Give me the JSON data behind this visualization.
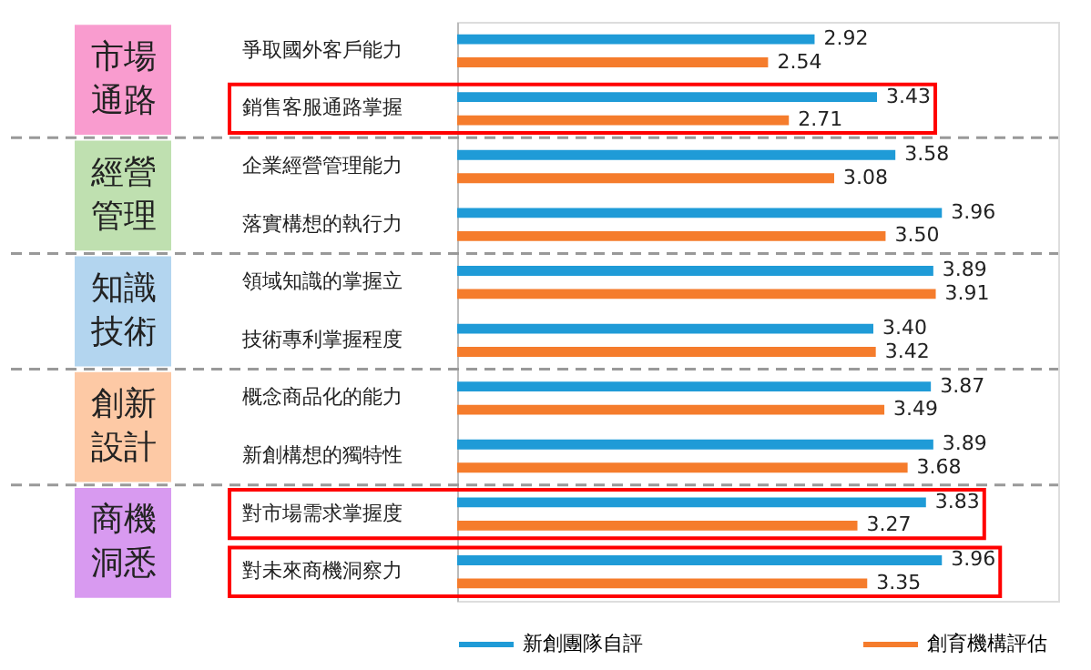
{
  "chart_data": {
    "type": "bar",
    "orientation": "horizontal",
    "legend": "bottom",
    "categories": [
      "爭取國外客戶能力",
      "銷售客服通路掌握",
      "企業經營管理能力",
      "落實構想的執行力",
      "領域知識的掌握立",
      "技術專利掌握程度",
      "概念商品化的能力",
      "新創構想的獨特性",
      "對市場需求掌握度",
      "對未來商機洞察力"
    ],
    "series": [
      {
        "name": "新創團隊自評",
        "color": "#1f9bd7",
        "values": [
          2.92,
          3.43,
          3.58,
          3.96,
          3.89,
          3.4,
          3.87,
          3.89,
          3.83,
          3.96
        ],
        "value_labels": [
          "2.92",
          "3.43",
          "3.58",
          "3.96",
          "3.89",
          "3.40",
          "3.87",
          "3.89",
          "3.83",
          "3.96"
        ]
      },
      {
        "name": "創育機構評估",
        "color": "#f57c2c",
        "values": [
          2.54,
          2.71,
          3.08,
          3.5,
          3.91,
          3.42,
          3.49,
          3.68,
          3.27,
          3.35
        ],
        "value_labels": [
          "2.54",
          "2.71",
          "3.08",
          "3.50",
          "3.91",
          "3.42",
          "3.49",
          "3.68",
          "3.27",
          "3.35"
        ]
      }
    ],
    "annotations": [
      "市場通路",
      "經營管理",
      "知識技術",
      "創新設計",
      "商機洞悉"
    ]
  }
}
